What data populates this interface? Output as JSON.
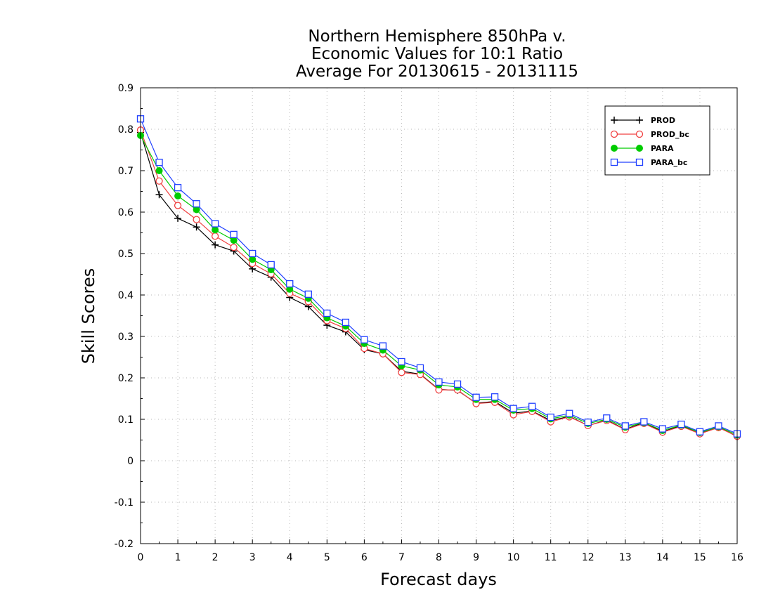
{
  "chart_data": {
    "type": "line",
    "title_lines": [
      "Northern Hemisphere 850hPa v.",
      "Economic Values for 10:1 Ratio",
      "Average For 20130615 - 20131115"
    ],
    "xlabel": "Forecast days",
    "ylabel": "Skill Scores",
    "xlim": [
      0,
      16
    ],
    "ylim": [
      -0.2,
      0.9
    ],
    "x_ticks": [
      "0",
      "1",
      "2",
      "3",
      "4",
      "5",
      "6",
      "7",
      "8",
      "9",
      "10",
      "11",
      "12",
      "13",
      "14",
      "15",
      "16"
    ],
    "y_ticks": [
      "0.9",
      "0.8",
      "0.7",
      "0.6",
      "0.5",
      "0.4",
      "0.3",
      "0.2",
      "0.1",
      "0",
      "-0.1",
      "-0.2"
    ],
    "grid": true,
    "legend_position": "top-right",
    "x": [
      0,
      0.5,
      1,
      1.5,
      2,
      2.5,
      3,
      3.5,
      4,
      4.5,
      5,
      5.5,
      6,
      6.5,
      7,
      7.5,
      8,
      8.5,
      9,
      9.5,
      10,
      10.5,
      11,
      11.5,
      12,
      12.5,
      13,
      13.5,
      14,
      14.5,
      15,
      15.5,
      16
    ],
    "series": [
      {
        "name": "PROD",
        "color": "#000000",
        "marker": "plus",
        "values": [
          0.792,
          0.642,
          0.585,
          0.564,
          0.521,
          0.506,
          0.463,
          0.443,
          0.394,
          0.372,
          0.327,
          0.311,
          0.268,
          0.258,
          0.216,
          0.209,
          0.172,
          0.17,
          0.139,
          0.143,
          0.115,
          0.12,
          0.097,
          0.107,
          0.085,
          0.098,
          0.076,
          0.092,
          0.07,
          0.085,
          0.065,
          0.082,
          0.058
        ]
      },
      {
        "name": "PROD_bc",
        "color": "#f04040",
        "marker": "circle-open",
        "values": [
          0.798,
          0.675,
          0.616,
          0.582,
          0.542,
          0.515,
          0.476,
          0.451,
          0.404,
          0.384,
          0.338,
          0.319,
          0.271,
          0.258,
          0.213,
          0.208,
          0.171,
          0.171,
          0.138,
          0.141,
          0.111,
          0.119,
          0.094,
          0.106,
          0.085,
          0.097,
          0.075,
          0.09,
          0.069,
          0.083,
          0.065,
          0.08,
          0.059
        ]
      },
      {
        "name": "PARA",
        "color": "#00cc00",
        "marker": "circle-filled",
        "values": [
          0.785,
          0.7,
          0.639,
          0.606,
          0.557,
          0.532,
          0.486,
          0.461,
          0.414,
          0.392,
          0.345,
          0.325,
          0.283,
          0.267,
          0.229,
          0.219,
          0.183,
          0.178,
          0.148,
          0.148,
          0.122,
          0.126,
          0.101,
          0.11,
          0.09,
          0.1,
          0.081,
          0.092,
          0.073,
          0.086,
          0.068,
          0.082,
          0.062
        ]
      },
      {
        "name": "PARA_bc",
        "color": "#2040ff",
        "marker": "square-open",
        "values": [
          0.825,
          0.72,
          0.659,
          0.62,
          0.572,
          0.546,
          0.5,
          0.473,
          0.427,
          0.402,
          0.356,
          0.334,
          0.292,
          0.277,
          0.239,
          0.224,
          0.19,
          0.185,
          0.153,
          0.154,
          0.126,
          0.131,
          0.105,
          0.114,
          0.093,
          0.103,
          0.084,
          0.094,
          0.077,
          0.088,
          0.07,
          0.084,
          0.065
        ]
      }
    ]
  }
}
